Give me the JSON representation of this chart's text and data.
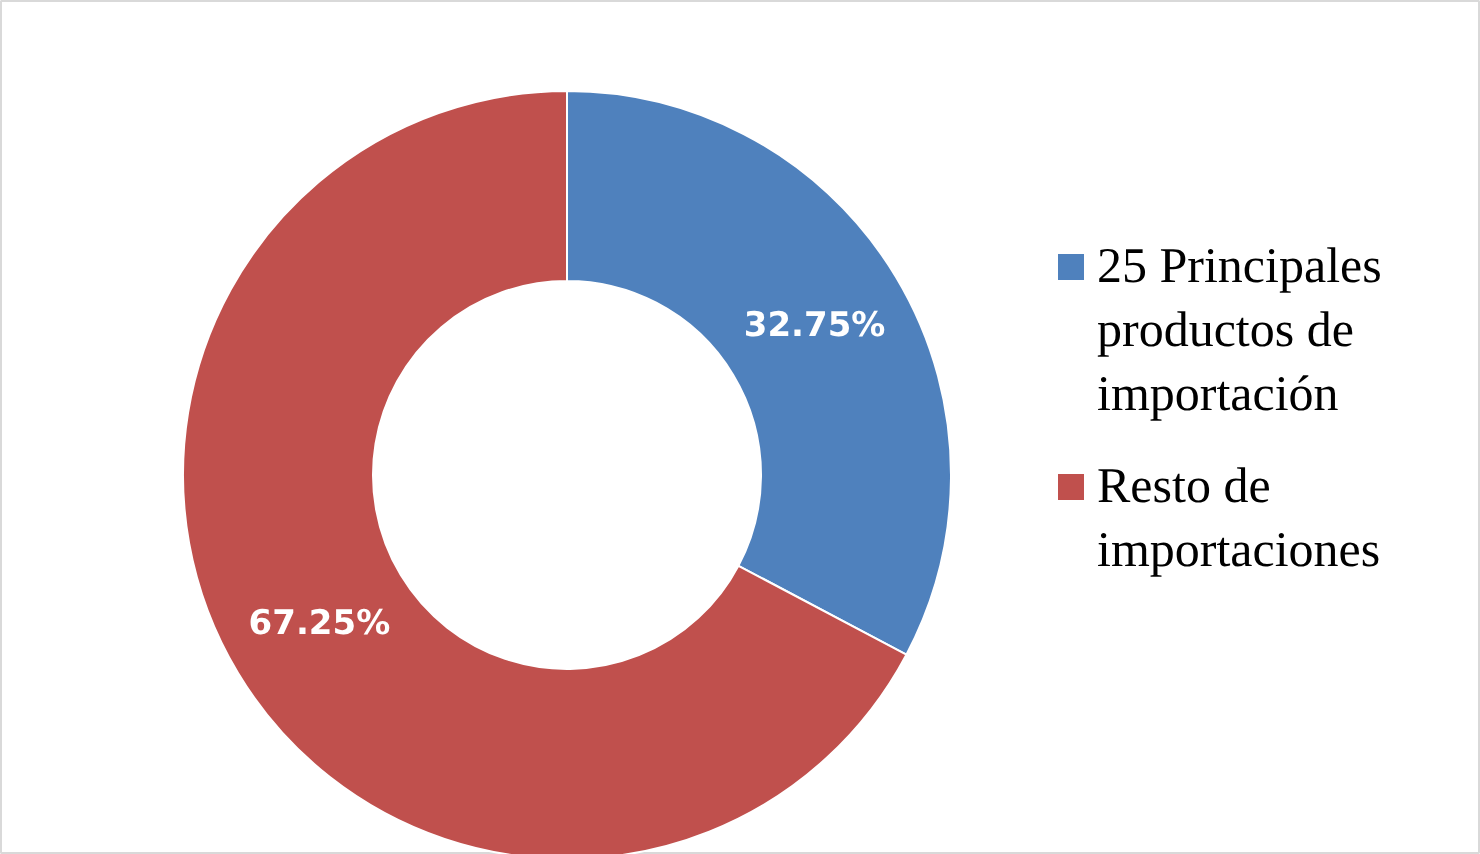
{
  "chart_data": {
    "type": "donut",
    "categories": [
      "25 Principales productos de importación",
      "Resto de importaciones"
    ],
    "values": [
      32.75,
      67.25
    ],
    "colors": [
      "#4f81bd",
      "#c0504d"
    ],
    "value_labels": [
      "32.75%",
      "67.25%"
    ],
    "legend": "right"
  }
}
